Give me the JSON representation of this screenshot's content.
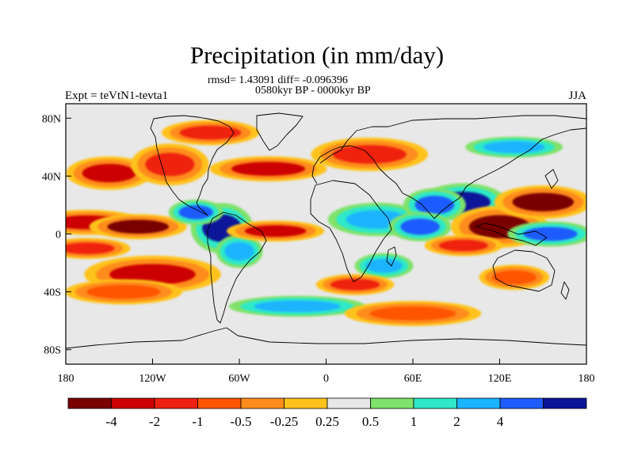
{
  "title": "Precipitation (in mm/day)",
  "stats_line": "rmsd= 1.43091 diff= -0.096396",
  "period_line": "0580kyr BP - 0000kyr BP",
  "experiment_label": "Expt = teVtN1-tevta1",
  "season_label": "JJA",
  "axes": {
    "lon_range": [
      -180,
      180
    ],
    "lat_range": [
      -90,
      90
    ],
    "lat_ticks": [
      {
        "value": 80,
        "label": "80N"
      },
      {
        "value": 40,
        "label": "40N"
      },
      {
        "value": 0,
        "label": "0"
      },
      {
        "value": -40,
        "label": "40S"
      },
      {
        "value": -80,
        "label": "80S"
      }
    ],
    "lon_ticks": [
      {
        "value": -180,
        "label": "180"
      },
      {
        "value": -120,
        "label": "120W"
      },
      {
        "value": -60,
        "label": "60W"
      },
      {
        "value": 0,
        "label": "0"
      },
      {
        "value": 60,
        "label": "60E"
      },
      {
        "value": 120,
        "label": "120E"
      },
      {
        "value": 180,
        "label": "180"
      }
    ]
  },
  "colorbar": {
    "colors": [
      "#7a0000",
      "#cc0000",
      "#ee2211",
      "#ff5500",
      "#ff8c1a",
      "#ffc21a",
      "#e8e8e8",
      "#7fe26a",
      "#2ee8c8",
      "#1ab4ff",
      "#1f5cff",
      "#0a1499"
    ],
    "labels": [
      "-4",
      "-2",
      "-1",
      "-0.5",
      "-0.25",
      "0.25",
      "0.5",
      "1",
      "2",
      "4"
    ]
  },
  "anomalies": [
    {
      "lon": -165,
      "lat": 8,
      "rx": 28,
      "ry": 6,
      "level": -3
    },
    {
      "lon": -130,
      "lat": 5,
      "rx": 25,
      "ry": 6,
      "level": -4
    },
    {
      "lon": -165,
      "lat": -10,
      "rx": 22,
      "ry": 5,
      "level": -2
    },
    {
      "lon": -120,
      "lat": -28,
      "rx": 35,
      "ry": 9,
      "level": -3
    },
    {
      "lon": -140,
      "lat": -40,
      "rx": 30,
      "ry": 6,
      "level": -1
    },
    {
      "lon": -150,
      "lat": 42,
      "rx": 22,
      "ry": 8,
      "level": -3
    },
    {
      "lon": -108,
      "lat": 48,
      "rx": 20,
      "ry": 10,
      "level": -2
    },
    {
      "lon": -72,
      "lat": 4,
      "rx": 16,
      "ry": 12,
      "level": 4
    },
    {
      "lon": -90,
      "lat": 15,
      "rx": 14,
      "ry": 6,
      "level": 2
    },
    {
      "lon": -60,
      "lat": -12,
      "rx": 12,
      "ry": 8,
      "level": 1
    },
    {
      "lon": -40,
      "lat": 45,
      "rx": 30,
      "ry": 6,
      "level": -3
    },
    {
      "lon": -35,
      "lat": 2,
      "rx": 25,
      "ry": 5,
      "level": -3
    },
    {
      "lon": 35,
      "lat": 10,
      "rx": 25,
      "ry": 8,
      "level": 1
    },
    {
      "lon": 40,
      "lat": -22,
      "rx": 15,
      "ry": 6,
      "level": 1
    },
    {
      "lon": 20,
      "lat": -35,
      "rx": 20,
      "ry": 5,
      "level": -2
    },
    {
      "lon": 30,
      "lat": 55,
      "rx": 30,
      "ry": 8,
      "level": -2
    },
    {
      "lon": 95,
      "lat": 22,
      "rx": 22,
      "ry": 9,
      "level": 4
    },
    {
      "lon": 75,
      "lat": 20,
      "rx": 16,
      "ry": 8,
      "level": 3
    },
    {
      "lon": 65,
      "lat": 5,
      "rx": 16,
      "ry": 7,
      "level": 2
    },
    {
      "lon": 120,
      "lat": 5,
      "rx": 25,
      "ry": 10,
      "level": -4
    },
    {
      "lon": 150,
      "lat": 22,
      "rx": 25,
      "ry": 8,
      "level": -4
    },
    {
      "lon": 155,
      "lat": 0,
      "rx": 22,
      "ry": 6,
      "level": 2
    },
    {
      "lon": 95,
      "lat": -8,
      "rx": 20,
      "ry": 5,
      "level": -2
    },
    {
      "lon": 130,
      "lat": -30,
      "rx": 18,
      "ry": 6,
      "level": -1
    },
    {
      "lon": -20,
      "lat": -50,
      "rx": 35,
      "ry": 5,
      "level": 1
    },
    {
      "lon": 60,
      "lat": -55,
      "rx": 35,
      "ry": 6,
      "level": -1
    },
    {
      "lon": -80,
      "lat": 70,
      "rx": 25,
      "ry": 6,
      "level": -2
    },
    {
      "lon": 130,
      "lat": 60,
      "rx": 25,
      "ry": 5,
      "level": 1
    }
  ]
}
